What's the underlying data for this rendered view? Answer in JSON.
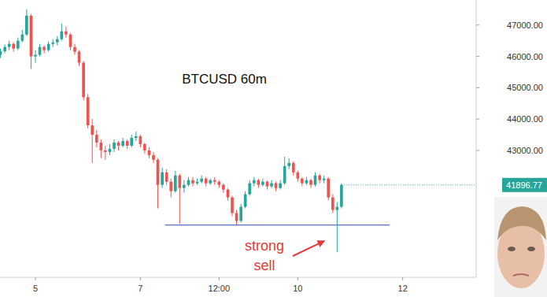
{
  "chart_data": {
    "type": "candlestick",
    "title": "BTCUSD 60m",
    "annotations": [
      "strong",
      "sell"
    ],
    "x": [
      4.333,
      4.417,
      4.5,
      4.583,
      4.667,
      4.75,
      4.833,
      4.917,
      5,
      5.083,
      5.167,
      5.25,
      5.333,
      5.417,
      5.5,
      5.583,
      5.667,
      5.75,
      5.833,
      5.917,
      6,
      6.083,
      6.167,
      6.25,
      6.333,
      6.417,
      6.5,
      6.583,
      6.667,
      6.75,
      6.833,
      6.917,
      7,
      7.083,
      7.167,
      7.25,
      7.333,
      7.417,
      7.5,
      7.583,
      7.667,
      7.75,
      7.833,
      7.917,
      8,
      8.083,
      8.167,
      8.25,
      8.333,
      8.417,
      8.5,
      8.583,
      8.667,
      8.75,
      8.833,
      8.917,
      9,
      9.083,
      9.167,
      9.25,
      9.333,
      9.417,
      9.5,
      9.583,
      9.667,
      9.75,
      9.833,
      9.917,
      10,
      10.083,
      10.167,
      10.25,
      10.333,
      10.417,
      10.5,
      10.583,
      10.667,
      10.75,
      10.833
    ],
    "open": [
      46050,
      46165,
      46300,
      46400,
      46250,
      46500,
      46700,
      47300,
      46000,
      46050,
      46300,
      46200,
      46400,
      46450,
      46550,
      46800,
      46700,
      46300,
      46150,
      45800,
      44700,
      43800,
      43500,
      43250,
      43000,
      42950,
      43050,
      43250,
      43150,
      43300,
      43150,
      43400,
      43450,
      43200,
      43000,
      42850,
      42700,
      41900,
      42300,
      42000,
      41700,
      42200,
      41800,
      41900,
      42050,
      41950,
      42000,
      42100,
      41950,
      42050,
      42000,
      41900,
      41750,
      41500,
      41000,
      40750,
      41200,
      41600,
      41950,
      42050,
      41900,
      42000,
      41850,
      41950,
      41800,
      41950,
      42500,
      42600,
      42300,
      42100,
      41950,
      42050,
      41900,
      42200,
      42050,
      42100,
      41500,
      41100,
      41200
    ],
    "high": [
      46250,
      46380,
      46500,
      46450,
      46600,
      46850,
      47500,
      47350,
      46200,
      46400,
      46350,
      46480,
      46550,
      46650,
      47050,
      46950,
      46750,
      46400,
      46200,
      45850,
      44800,
      44000,
      43650,
      43350,
      43150,
      43200,
      43350,
      43300,
      43400,
      43350,
      43500,
      43600,
      43500,
      43250,
      43100,
      42950,
      42750,
      42450,
      42400,
      42100,
      42350,
      42250,
      42050,
      42150,
      42150,
      42100,
      42200,
      42150,
      42100,
      42150,
      42050,
      41950,
      41800,
      41550,
      41100,
      41300,
      41700,
      42050,
      42150,
      42100,
      42100,
      42050,
      42050,
      42000,
      42050,
      42800,
      42750,
      42650,
      42350,
      42150,
      42150,
      42100,
      42300,
      42250,
      42200,
      42150,
      41600,
      41350,
      41950
    ],
    "low": [
      45950,
      46100,
      46200,
      46150,
      46200,
      46450,
      46650,
      45600,
      45800,
      46000,
      46100,
      46150,
      46300,
      46350,
      46500,
      46600,
      46200,
      46050,
      45700,
      44600,
      43700,
      42600,
      43100,
      42750,
      42700,
      42850,
      42950,
      43000,
      43100,
      43050,
      43100,
      43300,
      43100,
      42900,
      42750,
      42600,
      41150,
      41800,
      41900,
      41500,
      41650,
      40650,
      41650,
      41850,
      41850,
      41900,
      41950,
      41850,
      41900,
      41900,
      41800,
      41650,
      41400,
      40900,
      40600,
      40700,
      41150,
      41550,
      41850,
      41800,
      41850,
      41750,
      41800,
      41700,
      41750,
      41900,
      42400,
      42200,
      42000,
      41850,
      41900,
      41800,
      41850,
      41950,
      41950,
      41400,
      41000,
      39750,
      41150
    ],
    "close": [
      46165,
      46300,
      46400,
      46250,
      46500,
      46700,
      47300,
      46000,
      46050,
      46300,
      46200,
      46400,
      46450,
      46550,
      46800,
      46700,
      46300,
      46150,
      45800,
      44700,
      43800,
      43500,
      43250,
      43000,
      42950,
      43050,
      43250,
      43150,
      43300,
      43150,
      43400,
      43450,
      43200,
      43000,
      42850,
      42700,
      41900,
      42300,
      42000,
      41700,
      42200,
      41800,
      41900,
      42050,
      41950,
      42000,
      42100,
      41950,
      42050,
      42000,
      41900,
      41750,
      41500,
      41000,
      40750,
      41200,
      41600,
      41950,
      42050,
      41900,
      42000,
      41850,
      41950,
      41800,
      41950,
      42500,
      42600,
      42300,
      42100,
      41950,
      42050,
      41900,
      42200,
      42050,
      42100,
      41500,
      41100,
      41200,
      41896.77
    ],
    "hline": {
      "value": 40620,
      "x": [
        7.47,
        11.75
      ]
    },
    "xlim": [
      4.325,
      13.4
    ],
    "ylim": [
      38950,
      47800
    ],
    "xticks": [
      {
        "value": 5,
        "label": "5"
      },
      {
        "value": 7,
        "label": "7"
      },
      {
        "value": 8.5,
        "label": "12:00"
      },
      {
        "value": 10,
        "label": "10"
      },
      {
        "value": 12,
        "label": "12"
      }
    ],
    "yticks": [
      {
        "value": 43000,
        "label": "43000.00"
      },
      {
        "value": 44000,
        "label": "44000.00"
      },
      {
        "value": 45000,
        "label": "45000.00"
      },
      {
        "value": 46000,
        "label": "46000.00"
      },
      {
        "value": 47000,
        "label": "47000.00"
      }
    ]
  }
}
